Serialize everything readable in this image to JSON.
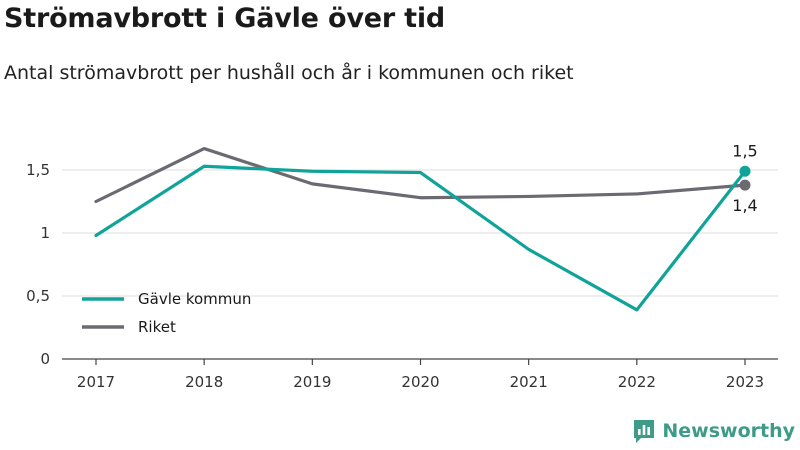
{
  "header": {
    "title": "Strömavbrott i Gävle över tid",
    "subtitle": "Antal strömavbrott per hushåll och år i kommunen och riket"
  },
  "brand": {
    "name": "Newsworthy",
    "icon": "newsworthy-logo-icon",
    "color": "#3d9b88"
  },
  "chart_data": {
    "type": "line",
    "x": [
      "2017",
      "2018",
      "2019",
      "2020",
      "2021",
      "2022",
      "2023"
    ],
    "ylim": [
      0,
      1.9
    ],
    "yticks": [
      0,
      0.5,
      1,
      1.5
    ],
    "ytick_labels": [
      "0",
      "0,5",
      "1",
      "1,5"
    ],
    "grid": true,
    "legend_position": "bottom-left",
    "series": [
      {
        "name": "Gävle kommun",
        "color": "#10a399",
        "values": [
          0.98,
          1.53,
          1.49,
          1.48,
          0.87,
          0.39,
          1.49
        ],
        "end_label": "1,5"
      },
      {
        "name": "Riket",
        "color": "#6b6a72",
        "values": [
          1.25,
          1.67,
          1.39,
          1.28,
          1.29,
          1.31,
          1.38
        ],
        "end_label": "1,4"
      }
    ]
  }
}
